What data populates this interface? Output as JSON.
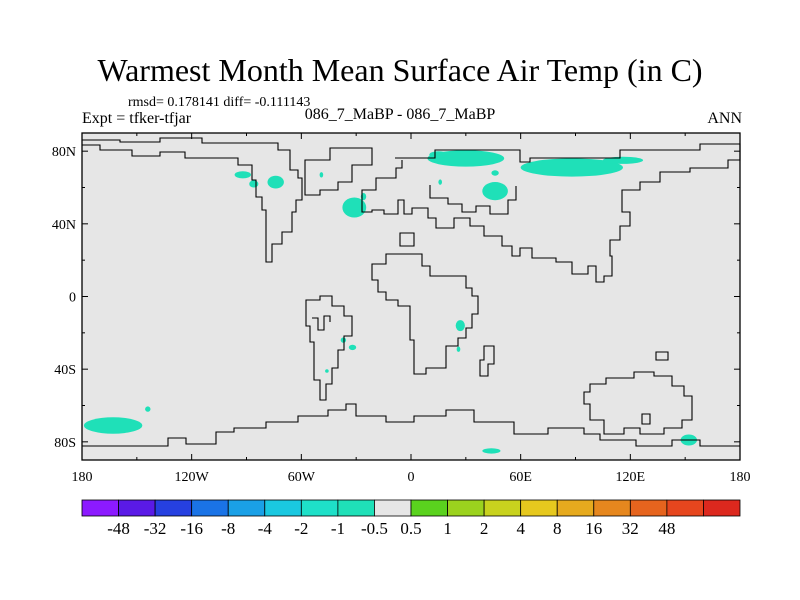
{
  "title": "Warmest Month Mean Surface Air Temp (in C)",
  "stats": "rmsd= 0.178141 diff= -0.111143",
  "expt": "Expt = tfker-tfjar",
  "center_label": "086_7_MaBP - 086_7_MaBP",
  "season": "ANN",
  "map": {
    "projection": "cylindrical-equidistant",
    "lon_range": [
      -180,
      180
    ],
    "lat_range": [
      -90,
      90
    ],
    "lat_ticks": [
      {
        "value": 80,
        "label": "80N"
      },
      {
        "value": 40,
        "label": "40N"
      },
      {
        "value": 0,
        "label": "0"
      },
      {
        "value": -40,
        "label": "40S"
      },
      {
        "value": -80,
        "label": "80S"
      }
    ],
    "lon_ticks": [
      {
        "value": -180,
        "label": "180"
      },
      {
        "value": -120,
        "label": "120W"
      },
      {
        "value": -60,
        "label": "60W"
      },
      {
        "value": 0,
        "label": "0"
      },
      {
        "value": 60,
        "label": "60E"
      },
      {
        "value": 120,
        "label": "120E"
      },
      {
        "value": 180,
        "label": "180"
      }
    ],
    "background_color": "#e6e6e6",
    "anomaly_color": "#1fe0b8",
    "anomaly_areas": [
      {
        "lon": -163,
        "lat": -71,
        "w": 32,
        "h": 9
      },
      {
        "lon": -144,
        "lat": -62,
        "w": 3,
        "h": 3
      },
      {
        "lon": -92,
        "lat": 67,
        "w": 9,
        "h": 4
      },
      {
        "lon": -86,
        "lat": 62,
        "w": 5,
        "h": 4
      },
      {
        "lon": -74,
        "lat": 63,
        "w": 9,
        "h": 7
      },
      {
        "lon": -49,
        "lat": 67,
        "w": 2,
        "h": 3
      },
      {
        "lon": -31,
        "lat": 49,
        "w": 13,
        "h": 11
      },
      {
        "lon": -26,
        "lat": 55,
        "w": 3,
        "h": 4
      },
      {
        "lon": 30,
        "lat": 76,
        "w": 42,
        "h": 9
      },
      {
        "lon": 15,
        "lat": 78,
        "w": 10,
        "h": 4
      },
      {
        "lon": 46,
        "lat": 68,
        "w": 4,
        "h": 3
      },
      {
        "lon": 16,
        "lat": 63,
        "w": 2,
        "h": 3
      },
      {
        "lon": 46,
        "lat": 58,
        "w": 14,
        "h": 10
      },
      {
        "lon": 88,
        "lat": 71,
        "w": 56,
        "h": 10
      },
      {
        "lon": 116,
        "lat": 75,
        "w": 22,
        "h": 4
      },
      {
        "lon": 27,
        "lat": -16,
        "w": 5,
        "h": 6
      },
      {
        "lon": 26,
        "lat": -29,
        "w": 2,
        "h": 3
      },
      {
        "lon": -32,
        "lat": -28,
        "w": 4,
        "h": 3
      },
      {
        "lon": -37,
        "lat": -24,
        "w": 3,
        "h": 3
      },
      {
        "lon": -46,
        "lat": -41,
        "w": 2,
        "h": 2
      },
      {
        "lon": 44,
        "lat": -85,
        "w": 10,
        "h": 3
      },
      {
        "lon": 152,
        "lat": -79,
        "w": 9,
        "h": 6
      }
    ]
  },
  "colorbar": {
    "colors": [
      "#8c1aff",
      "#5a1ae6",
      "#2640e0",
      "#1a73e6",
      "#1aa0e6",
      "#1ac8e0",
      "#1ee0c8",
      "#1fe0b8",
      "#e6e6e6",
      "#5ad21e",
      "#9bd21e",
      "#c8d21e",
      "#e6c81e",
      "#e6aa1e",
      "#e6871e",
      "#e6641e",
      "#e6461e",
      "#dc281e"
    ],
    "labels": [
      "-48",
      "-32",
      "-16",
      "-8",
      "-4",
      "-2",
      "-1",
      "-0.5",
      "0.5",
      "1",
      "2",
      "4",
      "8",
      "16",
      "32",
      "48"
    ]
  }
}
